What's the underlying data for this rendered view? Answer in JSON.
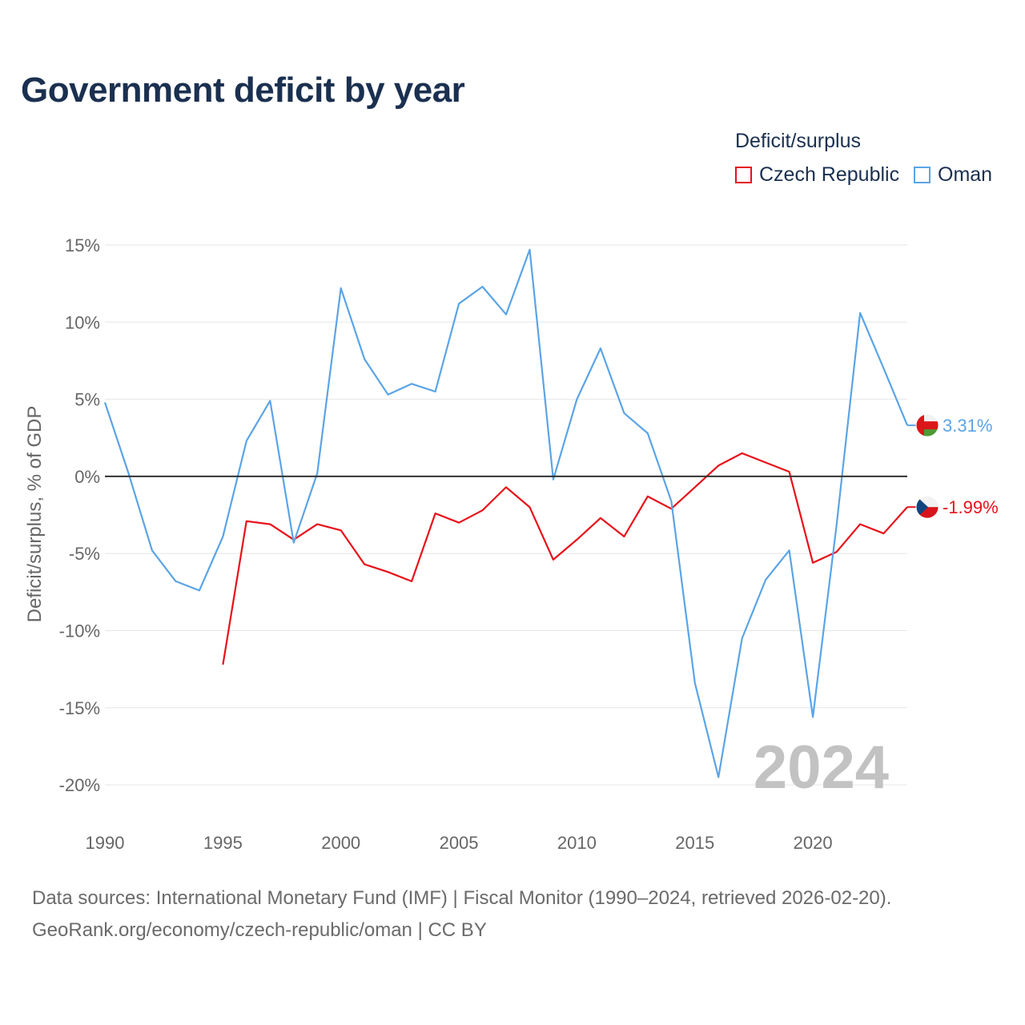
{
  "chart_data": {
    "type": "line",
    "title": "Government deficit by year",
    "ylabel": "Deficit/surplus, % of GDP",
    "xlabel": "",
    "legend_title": "Deficit/surplus",
    "ylim": [
      -22,
      16
    ],
    "xlim": [
      1990,
      2024
    ],
    "y_ticks": [
      15,
      10,
      5,
      0,
      -5,
      -10,
      -15,
      -20
    ],
    "y_tick_labels": [
      "15%",
      "10%",
      "5%",
      "0%",
      "-5%",
      "-10%",
      "-15%",
      "-20%"
    ],
    "x_ticks": [
      1990,
      1995,
      2000,
      2005,
      2010,
      2015,
      2020
    ],
    "x_tick_labels": [
      "1990",
      "1995",
      "2000",
      "2005",
      "2010",
      "2015",
      "2020"
    ],
    "year_watermark": "2024",
    "series": [
      {
        "name": "Czech Republic",
        "color": "#e8101a",
        "end_label": "-1.99%",
        "flag": "czech-flag",
        "points": [
          [
            1995,
            -12.2
          ],
          [
            1996,
            -2.9
          ],
          [
            1997,
            -3.1
          ],
          [
            1998,
            -4.1
          ],
          [
            1999,
            -3.1
          ],
          [
            2000,
            -3.5
          ],
          [
            2001,
            -5.7
          ],
          [
            2002,
            -6.2
          ],
          [
            2003,
            -6.8
          ],
          [
            2004,
            -2.4
          ],
          [
            2005,
            -3.0
          ],
          [
            2006,
            -2.2
          ],
          [
            2007,
            -0.7
          ],
          [
            2008,
            -2.0
          ],
          [
            2009,
            -5.4
          ],
          [
            2010,
            -4.1
          ],
          [
            2011,
            -2.7
          ],
          [
            2012,
            -3.9
          ],
          [
            2013,
            -1.3
          ],
          [
            2014,
            -2.1
          ],
          [
            2015,
            -0.7
          ],
          [
            2016,
            0.7
          ],
          [
            2017,
            1.5
          ],
          [
            2018,
            0.9
          ],
          [
            2019,
            0.3
          ],
          [
            2020,
            -5.6
          ],
          [
            2021,
            -4.9
          ],
          [
            2022,
            -3.1
          ],
          [
            2023,
            -3.7
          ],
          [
            2024,
            -1.99
          ]
        ]
      },
      {
        "name": "Oman",
        "color": "#5ba4e6",
        "end_label": "3.31%",
        "flag": "oman-flag",
        "points": [
          [
            1990,
            4.8
          ],
          [
            1991,
            0.2
          ],
          [
            1992,
            -4.8
          ],
          [
            1993,
            -6.8
          ],
          [
            1994,
            -7.4
          ],
          [
            1995,
            -3.9
          ],
          [
            1996,
            2.3
          ],
          [
            1997,
            4.9
          ],
          [
            1998,
            -4.3
          ],
          [
            1999,
            0.2
          ],
          [
            2000,
            12.2
          ],
          [
            2001,
            7.6
          ],
          [
            2002,
            5.3
          ],
          [
            2003,
            6.0
          ],
          [
            2004,
            5.5
          ],
          [
            2005,
            11.2
          ],
          [
            2006,
            12.3
          ],
          [
            2007,
            10.5
          ],
          [
            2008,
            14.7
          ],
          [
            2009,
            -0.2
          ],
          [
            2010,
            5.0
          ],
          [
            2011,
            8.3
          ],
          [
            2012,
            4.1
          ],
          [
            2013,
            2.8
          ],
          [
            2014,
            -1.6
          ],
          [
            2015,
            -13.4
          ],
          [
            2016,
            -19.5
          ],
          [
            2017,
            -10.5
          ],
          [
            2018,
            -6.7
          ],
          [
            2019,
            -4.8
          ],
          [
            2020,
            -15.6
          ],
          [
            2021,
            -3.2
          ],
          [
            2022,
            10.6
          ],
          [
            2023,
            7.0
          ],
          [
            2024,
            3.31
          ]
        ]
      }
    ],
    "footer": {
      "source": "Data sources: International Monetary Fund (IMF) | Fiscal Monitor (1990–2024, retrieved 2026-02-20).",
      "credit": "GeoRank.org/economy/czech-republic/oman | CC BY"
    }
  }
}
